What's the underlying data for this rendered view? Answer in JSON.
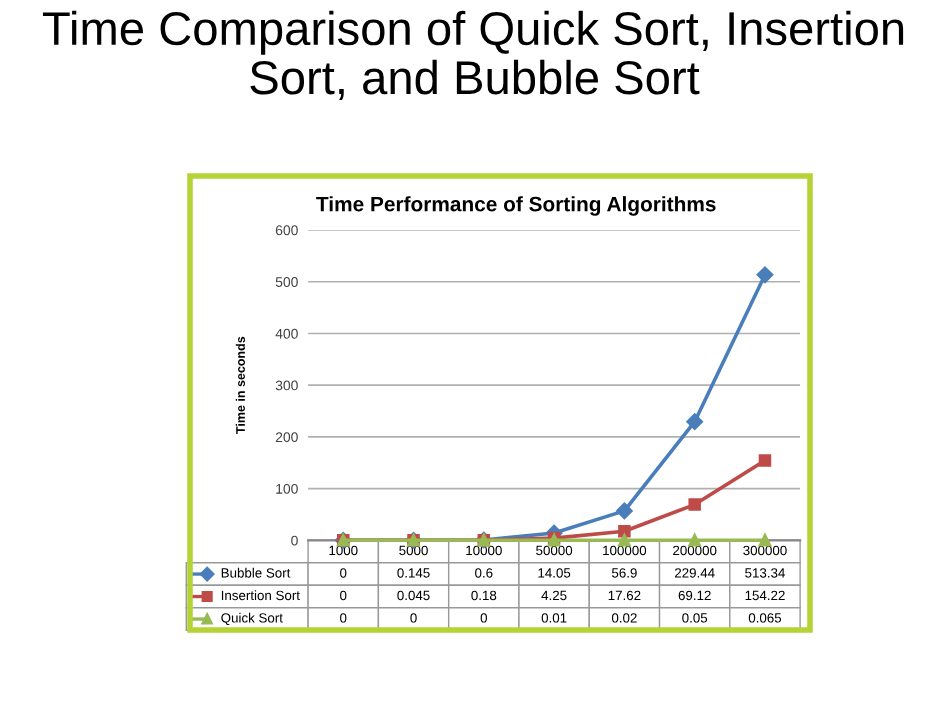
{
  "chart_data": {
    "type": "line",
    "title": "Time Comparison of Quick Sort, Insertion Sort, and Bubble Sort",
    "subtitle": "Time Performance of Sorting Algorithms",
    "ylabel": "Time in seconds",
    "categories": [
      "1000",
      "5000",
      "10000",
      "50000",
      "100000",
      "200000",
      "300000"
    ],
    "series": [
      {
        "name": "Bubble Sort",
        "color": "#4a7ebb",
        "marker": "diamond",
        "values": [
          0,
          0.145,
          0.6,
          14.05,
          56.9,
          229.44,
          513.34
        ]
      },
      {
        "name": "Insertion Sort",
        "color": "#be4b48",
        "marker": "square",
        "values": [
          0,
          0.045,
          0.18,
          4.25,
          17.62,
          69.12,
          154.22
        ]
      },
      {
        "name": "Quick Sort",
        "color": "#98b954",
        "marker": "triangle",
        "values": [
          0,
          0,
          0,
          0.01,
          0.02,
          0.05,
          0.065
        ]
      }
    ],
    "ylim": [
      0,
      600
    ],
    "yticks": [
      0,
      100,
      200,
      300,
      400,
      500,
      600
    ],
    "grid": "y",
    "legend": "bottom",
    "data_labels": true,
    "tick_labels": "y",
    "line_style": "solid"
  }
}
